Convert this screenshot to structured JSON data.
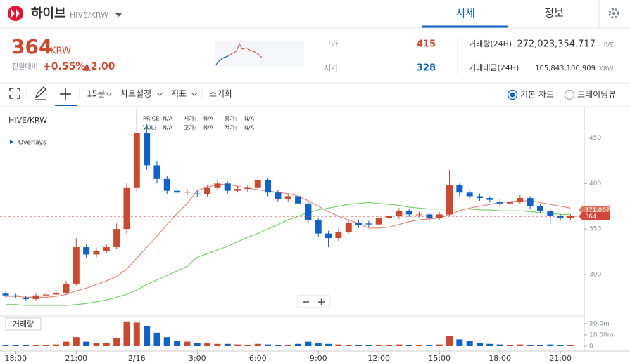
{
  "header": {
    "coin": "하이브",
    "pair": "HIVE/KRW",
    "tabs": [
      "시세",
      "정보"
    ]
  },
  "ticker": {
    "price": "364",
    "unit": "KRW",
    "change_label": "전일대비",
    "change_pct": "+0.55%",
    "change_amt": "▲2.00"
  },
  "stats": {
    "high_label": "고가",
    "high": "415",
    "low_label": "저가",
    "low": "328",
    "volume_label": "거래량(24H)",
    "volume": "272,023,354.717",
    "volume_unit": "HIVE",
    "amount_label": "거래대금(24H)",
    "amount": "105,843,106,909",
    "amount_unit": "KRW"
  },
  "toolbar": {
    "interval": "15분",
    "items": [
      "차트설정",
      "지표",
      "초기화"
    ],
    "views": [
      "기본 차트",
      "트레이딩뷰"
    ]
  },
  "chart_panel": {
    "symbol": "HIVE/KRW",
    "overlays": "Overlays",
    "volume_label": "거래량",
    "info": [
      [
        "PRICE:",
        "N/A"
      ],
      [
        "시가:",
        "N/A"
      ],
      [
        "종가:",
        "N/A"
      ],
      [
        "VOL:",
        "N/A"
      ],
      [
        "고가:",
        "N/A"
      ],
      [
        "저가:",
        "N/A"
      ]
    ]
  },
  "chart_data": {
    "type": "candlestick",
    "categories": [
      null,
      "18:00",
      null,
      null,
      null,
      null,
      null,
      "21:00",
      null,
      null,
      null,
      null,
      null,
      "2/16",
      null,
      null,
      null,
      null,
      null,
      "3:00",
      null,
      null,
      null,
      null,
      null,
      "6:00",
      null,
      null,
      null,
      null,
      null,
      "9:00",
      null,
      null,
      null,
      null,
      null,
      "12:00",
      null,
      null,
      null,
      null,
      null,
      "15:00",
      null,
      null,
      null,
      null,
      null,
      "18:00",
      null,
      null,
      null,
      null,
      null,
      "21:00",
      null
    ],
    "open": [
      279,
      277,
      274,
      273,
      277,
      278,
      280,
      290,
      330,
      322,
      326,
      330,
      350,
      395,
      455,
      420,
      405,
      392,
      390,
      389,
      388,
      395,
      400,
      392,
      394,
      395,
      404,
      390,
      383,
      386,
      378,
      360,
      345,
      340,
      347,
      357,
      356,
      355,
      362,
      364,
      370,
      366,
      366,
      362,
      366,
      398,
      390,
      386,
      384,
      380,
      378,
      380,
      384,
      375,
      370,
      364,
      362
    ],
    "high": [
      281,
      279,
      276,
      279,
      281,
      283,
      293,
      340,
      333,
      329,
      333,
      356,
      400,
      482,
      465,
      425,
      408,
      395,
      394,
      392,
      398,
      404,
      402,
      397,
      398,
      407,
      406,
      393,
      389,
      389,
      380,
      362,
      348,
      350,
      360,
      360,
      359,
      365,
      368,
      373,
      372,
      369,
      368,
      369,
      415,
      400,
      393,
      389,
      386,
      383,
      383,
      387,
      386,
      377,
      372,
      366,
      366
    ],
    "low": [
      275,
      274,
      271,
      271,
      275,
      276,
      278,
      288,
      318,
      319,
      323,
      328,
      345,
      390,
      415,
      400,
      388,
      387,
      387,
      385,
      385,
      393,
      389,
      390,
      391,
      393,
      386,
      380,
      380,
      375,
      356,
      341,
      330,
      337,
      345,
      351,
      352,
      353,
      360,
      361,
      363,
      363,
      359,
      360,
      364,
      386,
      383,
      381,
      379,
      375,
      376,
      378,
      372,
      367,
      356,
      359,
      360
    ],
    "close": [
      277,
      276,
      273,
      277,
      278,
      280,
      290,
      330,
      322,
      326,
      330,
      350,
      395,
      455,
      420,
      405,
      392,
      390,
      391,
      388,
      395,
      400,
      392,
      394,
      395,
      404,
      390,
      383,
      386,
      378,
      360,
      345,
      340,
      347,
      357,
      354,
      355,
      362,
      364,
      370,
      366,
      366,
      362,
      366,
      398,
      390,
      386,
      384,
      382,
      378,
      380,
      384,
      375,
      370,
      364,
      362,
      364
    ],
    "volume": [
      1,
      1,
      1,
      1,
      1,
      1.5,
      4,
      8,
      4,
      3,
      3,
      7,
      22,
      21,
      18,
      12,
      8,
      5,
      4,
      3,
      3,
      2,
      2,
      1.5,
      1,
      2,
      1.5,
      1,
      1,
      2,
      4,
      3,
      2,
      1.5,
      1,
      1,
      1,
      1,
      1,
      1.5,
      1,
      1,
      1,
      1.5,
      9,
      6,
      5,
      3,
      2,
      1.5,
      1,
      1.5,
      1,
      1,
      1.5,
      1,
      1
    ],
    "moving_averages": [
      {
        "color": "#e0877a",
        "values": [
          276,
          276,
          275,
          275,
          275,
          276,
          278,
          282,
          285,
          289,
          293,
          298,
          306,
          318,
          330,
          342,
          355,
          367,
          378,
          392,
          396,
          399,
          399,
          397,
          395,
          393,
          392,
          390,
          389,
          386,
          381,
          375,
          369,
          364,
          360,
          356,
          351,
          351,
          352,
          355,
          358,
          360,
          361,
          362,
          366,
          370,
          373,
          375,
          377,
          379,
          380,
          381,
          381,
          379,
          377,
          375,
          373
        ]
      },
      {
        "color": "#7ccf6f",
        "values": [
          267,
          267,
          266,
          266,
          266,
          266,
          266,
          267,
          268,
          270,
          272,
          275,
          278,
          283,
          289,
          294,
          299,
          304,
          309,
          319,
          323,
          327,
          331,
          336,
          341,
          345,
          350,
          355,
          360,
          364,
          368,
          371,
          373,
          375,
          377,
          378,
          379,
          378,
          377,
          376,
          374,
          373,
          372,
          372,
          372,
          372,
          372,
          371,
          371,
          370,
          370,
          370,
          369,
          368,
          367,
          366,
          366
        ]
      }
    ],
    "up_color": "#c84a31",
    "down_color": "#1261c4",
    "ylim": [
      256,
      482
    ],
    "yticks": [
      300,
      350,
      400,
      450
    ],
    "volume_ylim": [
      0,
      25.6
    ],
    "volume_ticks": [
      0,
      {
        "value": 10,
        "label": "10.00m"
      },
      {
        "value": 20,
        "label": "20.0m"
      }
    ],
    "price_tags": [
      {
        "value": 371.067,
        "color": "#e0735f"
      },
      {
        "value": 364,
        "color": "#d2463b"
      }
    ]
  }
}
